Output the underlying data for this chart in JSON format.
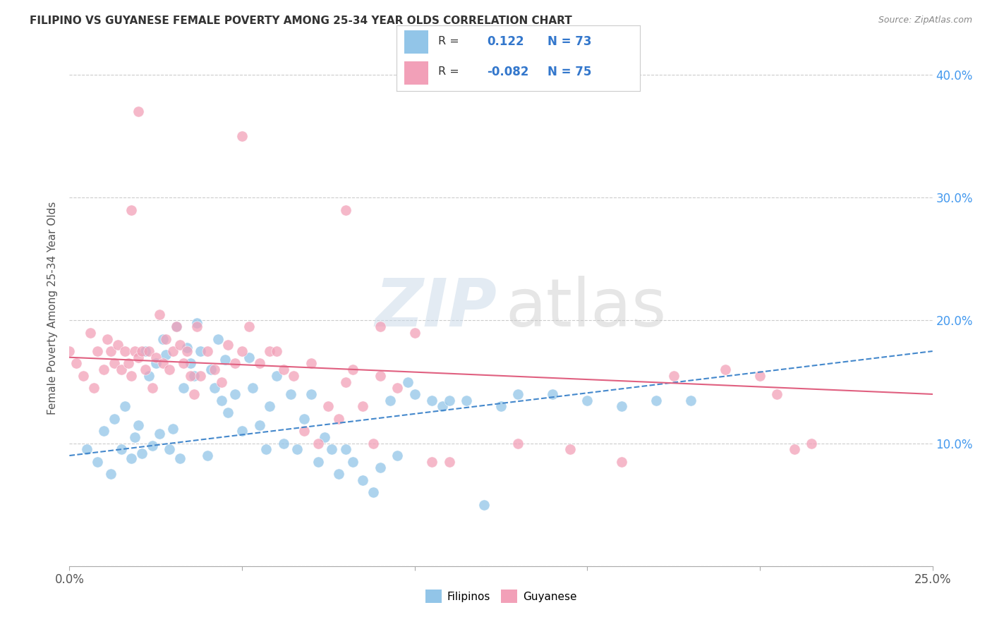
{
  "title": "FILIPINO VS GUYANESE FEMALE POVERTY AMONG 25-34 YEAR OLDS CORRELATION CHART",
  "source": "Source: ZipAtlas.com",
  "ylabel": "Female Poverty Among 25-34 Year Olds",
  "xlim": [
    0.0,
    0.25
  ],
  "ylim": [
    0.0,
    0.42
  ],
  "x_ticks": [
    0.0,
    0.05,
    0.1,
    0.15,
    0.2,
    0.25
  ],
  "x_tick_labels_show": [
    "0.0%",
    "",
    "",
    "",
    "",
    "25.0%"
  ],
  "y_ticks": [
    0.0,
    0.1,
    0.2,
    0.3,
    0.4
  ],
  "y_tick_labels_right": [
    "",
    "10.0%",
    "20.0%",
    "30.0%",
    "40.0%"
  ],
  "color_filipino": "#92C5E8",
  "color_guyanese": "#F2A0B8",
  "color_line_filipino": "#4488CC",
  "color_line_guyanese": "#E06080",
  "watermark_zip": "ZIP",
  "watermark_atlas": "atlas",
  "background_color": "#FFFFFF",
  "grid_color": "#CCCCCC",
  "title_color": "#333333",
  "axis_label_color": "#555555",
  "right_tick_color": "#4499EE",
  "legend_color": "#3377CC",
  "filipino_pts_x": [
    0.005,
    0.008,
    0.01,
    0.012,
    0.013,
    0.015,
    0.016,
    0.018,
    0.019,
    0.02,
    0.021,
    0.022,
    0.023,
    0.024,
    0.025,
    0.026,
    0.027,
    0.028,
    0.029,
    0.03,
    0.031,
    0.032,
    0.033,
    0.034,
    0.035,
    0.036,
    0.037,
    0.038,
    0.04,
    0.041,
    0.042,
    0.043,
    0.044,
    0.045,
    0.046,
    0.048,
    0.05,
    0.052,
    0.053,
    0.055,
    0.057,
    0.058,
    0.06,
    0.062,
    0.064,
    0.066,
    0.068,
    0.07,
    0.072,
    0.074,
    0.076,
    0.078,
    0.08,
    0.082,
    0.085,
    0.088,
    0.09,
    0.093,
    0.095,
    0.098,
    0.1,
    0.105,
    0.108,
    0.11,
    0.115,
    0.12,
    0.125,
    0.13,
    0.14,
    0.15,
    0.16,
    0.17,
    0.18
  ],
  "filipino_pts_y": [
    0.095,
    0.085,
    0.11,
    0.075,
    0.12,
    0.095,
    0.13,
    0.088,
    0.105,
    0.115,
    0.092,
    0.175,
    0.155,
    0.098,
    0.165,
    0.108,
    0.185,
    0.172,
    0.095,
    0.112,
    0.195,
    0.088,
    0.145,
    0.178,
    0.165,
    0.155,
    0.198,
    0.175,
    0.09,
    0.16,
    0.145,
    0.185,
    0.135,
    0.168,
    0.125,
    0.14,
    0.11,
    0.17,
    0.145,
    0.115,
    0.095,
    0.13,
    0.155,
    0.1,
    0.14,
    0.095,
    0.12,
    0.14,
    0.085,
    0.105,
    0.095,
    0.075,
    0.095,
    0.085,
    0.07,
    0.06,
    0.08,
    0.135,
    0.09,
    0.15,
    0.14,
    0.135,
    0.13,
    0.135,
    0.135,
    0.05,
    0.13,
    0.14,
    0.14,
    0.135,
    0.13,
    0.135,
    0.135
  ],
  "guyanese_pts_x": [
    0.0,
    0.002,
    0.004,
    0.006,
    0.007,
    0.008,
    0.01,
    0.011,
    0.012,
    0.013,
    0.014,
    0.015,
    0.016,
    0.017,
    0.018,
    0.019,
    0.02,
    0.021,
    0.022,
    0.023,
    0.024,
    0.025,
    0.026,
    0.027,
    0.028,
    0.029,
    0.03,
    0.031,
    0.032,
    0.033,
    0.034,
    0.035,
    0.036,
    0.037,
    0.038,
    0.04,
    0.042,
    0.044,
    0.046,
    0.048,
    0.05,
    0.052,
    0.055,
    0.058,
    0.06,
    0.062,
    0.065,
    0.068,
    0.07,
    0.072,
    0.075,
    0.078,
    0.08,
    0.082,
    0.085,
    0.088,
    0.09,
    0.095,
    0.1,
    0.105,
    0.11,
    0.13,
    0.145,
    0.16,
    0.175,
    0.19,
    0.2,
    0.205,
    0.21,
    0.215,
    0.02,
    0.018,
    0.05,
    0.08,
    0.09
  ],
  "guyanese_pts_y": [
    0.175,
    0.165,
    0.155,
    0.19,
    0.145,
    0.175,
    0.16,
    0.185,
    0.175,
    0.165,
    0.18,
    0.16,
    0.175,
    0.165,
    0.155,
    0.175,
    0.17,
    0.175,
    0.16,
    0.175,
    0.145,
    0.17,
    0.205,
    0.165,
    0.185,
    0.16,
    0.175,
    0.195,
    0.18,
    0.165,
    0.175,
    0.155,
    0.14,
    0.195,
    0.155,
    0.175,
    0.16,
    0.15,
    0.18,
    0.165,
    0.175,
    0.195,
    0.165,
    0.175,
    0.175,
    0.16,
    0.155,
    0.11,
    0.165,
    0.1,
    0.13,
    0.12,
    0.15,
    0.16,
    0.13,
    0.1,
    0.155,
    0.145,
    0.19,
    0.085,
    0.085,
    0.1,
    0.095,
    0.085,
    0.155,
    0.16,
    0.155,
    0.14,
    0.095,
    0.1,
    0.37,
    0.29,
    0.35,
    0.29,
    0.195
  ]
}
